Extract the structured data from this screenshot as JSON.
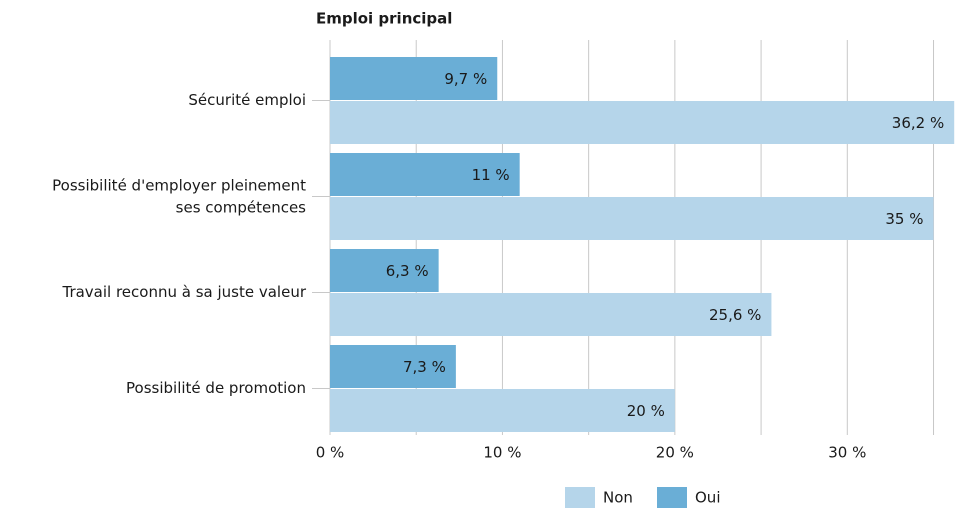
{
  "chart_data": {
    "type": "bar",
    "orientation": "horizontal",
    "title": "Emploi principal",
    "categories": [
      "Sécurité emploi",
      "Possibilité d'employer pleinement ses compétences",
      "Travail reconnu à sa juste valeur",
      "Possibilité de promotion"
    ],
    "series": [
      {
        "name": "Oui",
        "color": "#6aaed6",
        "values": [
          9.7,
          11,
          6.3,
          7.3
        ],
        "value_labels": [
          "9,7 %",
          "11 %",
          "6,3 %",
          "7,3 %"
        ]
      },
      {
        "name": "Non",
        "color": "#b5d5ea",
        "values": [
          36.2,
          35,
          25.6,
          20
        ],
        "value_labels": [
          "36,2 %",
          "35 %",
          "25,6 %",
          "20 %"
        ]
      }
    ],
    "xlim": [
      0,
      37
    ],
    "xticks": [
      {
        "value": 0,
        "label": "0 %"
      },
      {
        "value": 10,
        "label": "10 %"
      },
      {
        "value": 20,
        "label": "20 %"
      },
      {
        "value": 30,
        "label": "30 %"
      }
    ],
    "xminor": [
      5,
      15,
      25,
      35
    ],
    "grid": true
  }
}
